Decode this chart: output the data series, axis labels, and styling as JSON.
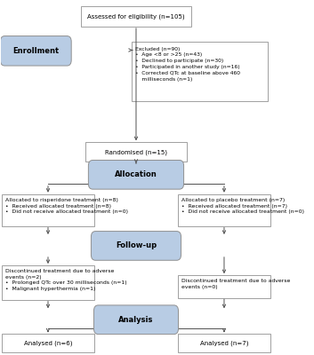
{
  "bg_color": "#ffffff",
  "box_fc": "#ffffff",
  "box_ec": "#909090",
  "stage_fc": "#b8cce4",
  "stage_ec": "#909090",
  "arrow_color": "#505050",
  "eligibility_text": "Assessed for eligibility (n=105)",
  "enrollment_label": "Enrollment",
  "excluded_title": "Excluded (n=90)",
  "excluded_bullets": [
    "Age <8 or >25 (n=43)",
    "Declined to participate (n=30)",
    "Participated in another study (n=16)",
    "Corrected QTc at baseline above 460\n    milliseconds (n=1)"
  ],
  "randomised_text": "Randomised (n=15)",
  "allocation_label": "Allocation",
  "alloc_r_title": "Allocated to risperidone treatment (n=8)",
  "alloc_r_bullets": [
    "Received allocated treatment (n=8)",
    "Did not receive allocated treatment (n=0)"
  ],
  "alloc_p_title": "Allocated to placebo treatment (n=7)",
  "alloc_p_bullets": [
    "Received allocated treatment (n=7)",
    "Did not receive allocated treatment (n=0)"
  ],
  "followup_label": "Follow-up",
  "disc_r_title": "Discontinued treatment due to adverse\nevents (n=2)",
  "disc_r_bullets": [
    "Prolonged QTc over 30 milliseconds (n=1)",
    "Malignant hyperthermia (n=1)"
  ],
  "disc_p_title": "Discontinued treatment due to adverse\nevents (n=0)",
  "analysis_label": "Analysis",
  "analysed_r": "Analysed (n=6)",
  "analysed_p": "Analysed (n=7)"
}
